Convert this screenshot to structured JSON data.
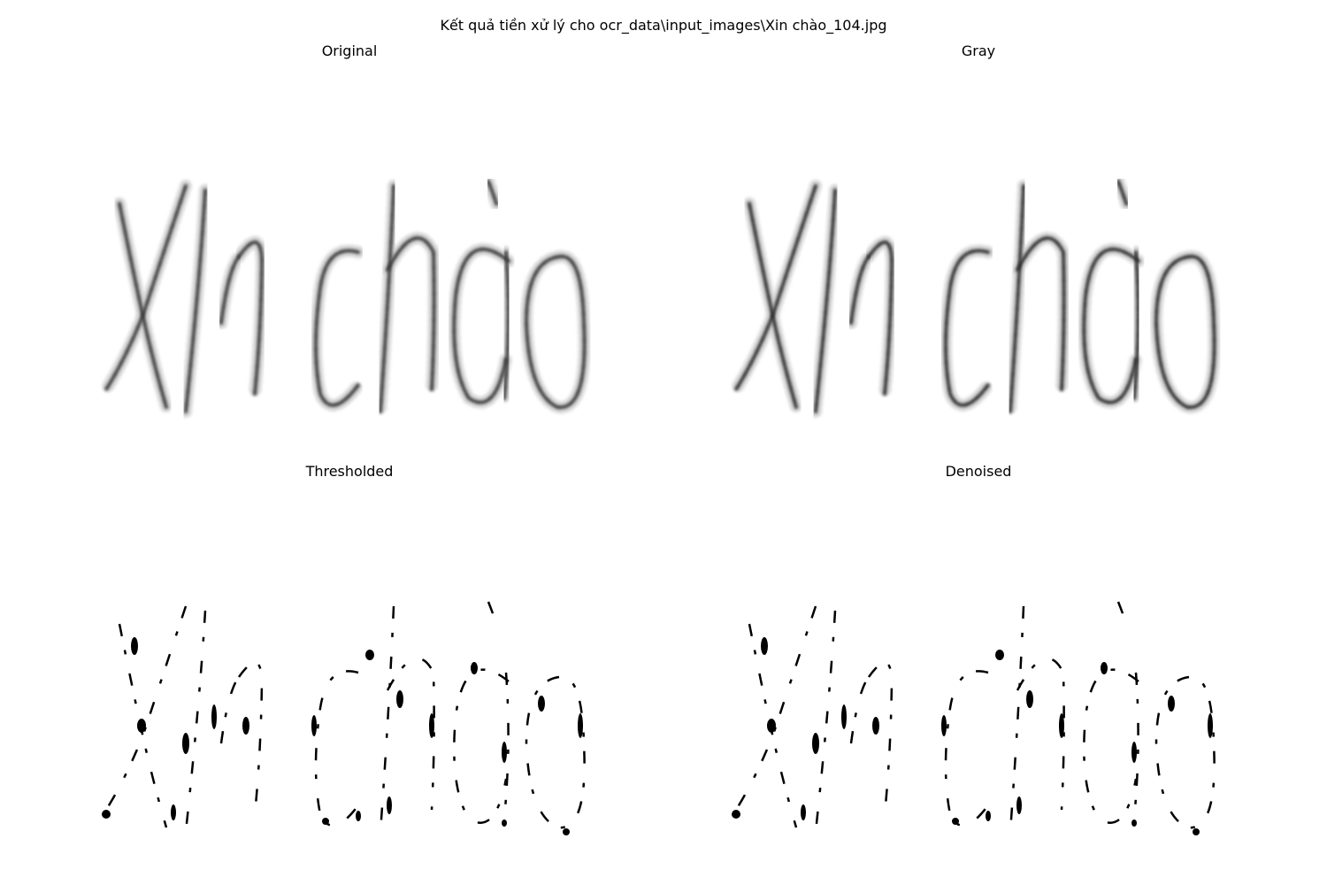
{
  "figure": {
    "suptitle": "Kết quả tiền xử lý cho ocr_data\\input_images\\Xin chào_104.jpg"
  },
  "panels": [
    {
      "title": "Original",
      "style": "soft",
      "color": "#3a3a3a"
    },
    {
      "title": "Gray",
      "style": "soft",
      "color": "#2e2e2e"
    },
    {
      "title": "Thresholded",
      "style": "binary",
      "color": "#000000"
    },
    {
      "title": "Denoised",
      "style": "binary",
      "color": "#000000"
    }
  ]
}
